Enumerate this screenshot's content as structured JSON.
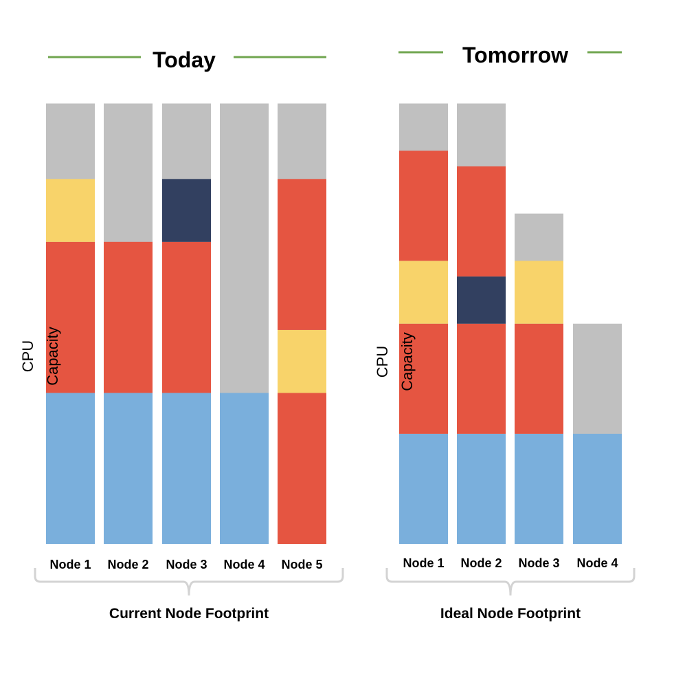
{
  "colors": {
    "capacity_gray": "#C0C0C0",
    "blue": "#7AAFDC",
    "red": "#E55541",
    "yellow": "#F8D36A",
    "navy": "#324060",
    "title_line_green": "#70A64F",
    "bracket_gray": "#D3D3D3"
  },
  "panels": [
    {
      "title": "Today",
      "axis_label_parts": [
        "CPU",
        "Capacity"
      ],
      "bracket_label": "Current Node Footprint",
      "nodes": [
        {
          "label": "Node 1",
          "capacity": 7.0,
          "segments": [
            {
              "color": "blue",
              "value": 2.4
            },
            {
              "color": "red",
              "value": 2.4
            },
            {
              "color": "yellow",
              "value": 1.0
            }
          ]
        },
        {
          "label": "Node 2",
          "capacity": 7.0,
          "segments": [
            {
              "color": "blue",
              "value": 2.4
            },
            {
              "color": "red",
              "value": 2.4
            }
          ]
        },
        {
          "label": "Node 3",
          "capacity": 7.0,
          "segments": [
            {
              "color": "blue",
              "value": 2.4
            },
            {
              "color": "red",
              "value": 2.4
            },
            {
              "color": "navy",
              "value": 1.0
            }
          ]
        },
        {
          "label": "Node 4",
          "capacity": 7.0,
          "segments": [
            {
              "color": "blue",
              "value": 2.4
            }
          ]
        },
        {
          "label": "Node 5",
          "capacity": 7.0,
          "segments": [
            {
              "color": "red",
              "value": 2.4
            },
            {
              "color": "yellow",
              "value": 1.0
            },
            {
              "color": "red",
              "value": 2.4
            }
          ]
        }
      ]
    },
    {
      "title": "Tomorrow",
      "axis_label_parts": [
        "CPU",
        "Capacity"
      ],
      "bracket_label": "Ideal Node Footprint",
      "nodes": [
        {
          "label": "Node 1",
          "capacity": 7.0,
          "segments": [
            {
              "color": "blue",
              "value": 1.75
            },
            {
              "color": "red",
              "value": 1.75
            },
            {
              "color": "yellow",
              "value": 1.0
            },
            {
              "color": "red",
              "value": 1.75
            }
          ]
        },
        {
          "label": "Node 2",
          "capacity": 7.0,
          "segments": [
            {
              "color": "blue",
              "value": 1.75
            },
            {
              "color": "red",
              "value": 1.75
            },
            {
              "color": "navy",
              "value": 0.75
            },
            {
              "color": "red",
              "value": 1.75
            }
          ]
        },
        {
          "label": "Node 3",
          "capacity": 5.25,
          "segments": [
            {
              "color": "blue",
              "value": 1.75
            },
            {
              "color": "red",
              "value": 1.75
            },
            {
              "color": "yellow",
              "value": 1.0
            }
          ]
        },
        {
          "label": "Node 4",
          "capacity": 3.5,
          "segments": [
            {
              "color": "blue",
              "value": 1.75
            }
          ]
        }
      ]
    }
  ]
}
